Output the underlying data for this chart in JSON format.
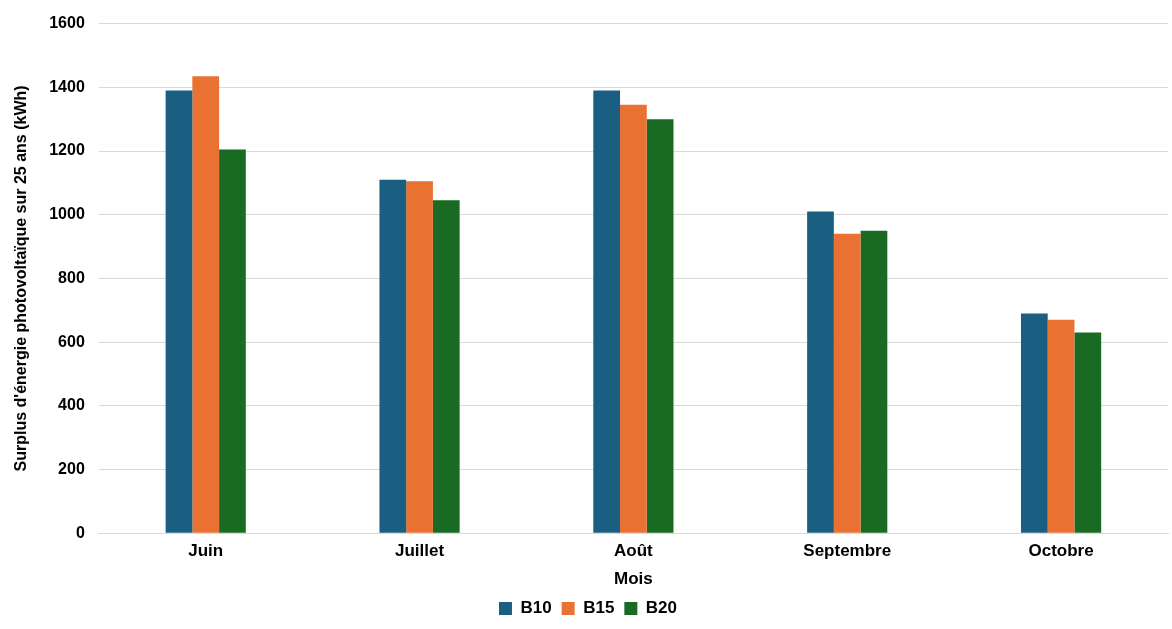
{
  "chart_data": {
    "type": "bar",
    "xlabel": "Mois",
    "ylabel": "Surplus d'énergie photovoltaïque sur 25 ans (kWh)",
    "categories": [
      "Juin",
      "Juillet",
      "Août",
      "Septembre",
      "Octobre"
    ],
    "series": [
      {
        "name": "B10",
        "color": "#1a5f82",
        "values": [
          1390,
          1110,
          1390,
          1010,
          690
        ]
      },
      {
        "name": "B15",
        "color": "#e97132",
        "values": [
          1435,
          1105,
          1345,
          940,
          670
        ]
      },
      {
        "name": "B20",
        "color": "#196b24",
        "values": [
          1205,
          1045,
          1300,
          950,
          630
        ]
      }
    ],
    "ylim": [
      0,
      1600
    ],
    "yticks": [
      0,
      200,
      400,
      600,
      800,
      1000,
      1200,
      1400,
      1600
    ],
    "grid": "y",
    "legend": "bottom"
  }
}
